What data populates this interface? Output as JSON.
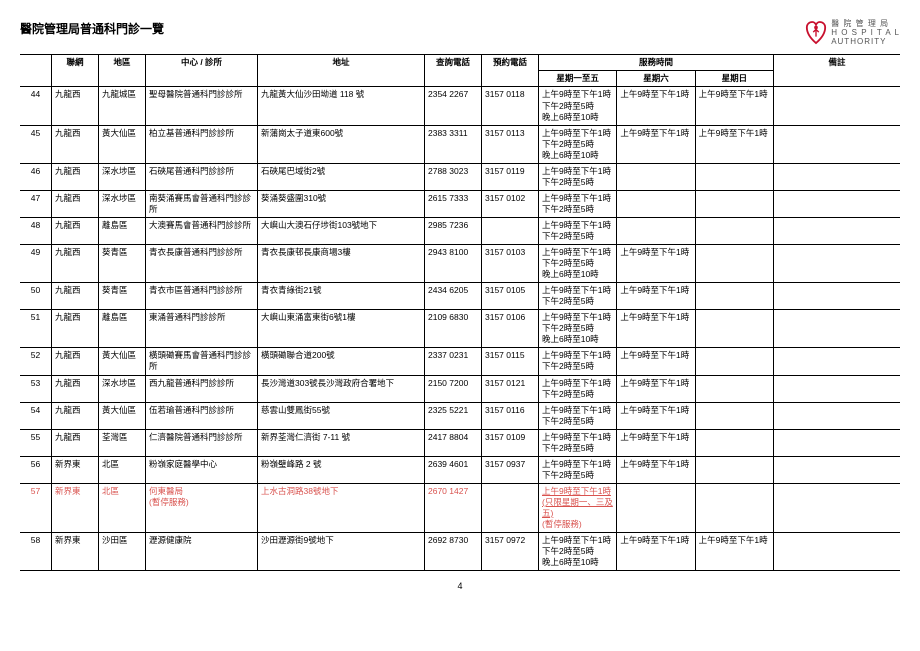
{
  "title": "醫院管理局普通科門診一覽",
  "logo": {
    "line1": "醫 院 管 理 局",
    "line2": "H O S P I T A L",
    "line3": "AUTHORITY"
  },
  "headers": {
    "cluster": "聯網",
    "district": "地區",
    "center": "中心 / 診所",
    "addr": "地址",
    "enq": "查詢電話",
    "book": "預約電話",
    "service": "服務時間",
    "weekday": "星期一至五",
    "sat": "星期六",
    "sun": "星期日",
    "remark": "備註"
  },
  "rows": [
    {
      "no": "44",
      "cluster": "九龍西",
      "district": "九龍城區",
      "center": "聖母醫院普通科門診診所",
      "addr": "九龍黃大仙沙田坳道 118 號",
      "enq": "2354 2267",
      "book": "3157 0118",
      "wk": "上午9時至下午1時\n下午2時至5時\n晚上6時至10時",
      "sat": "上午9時至下午1時",
      "sun": "上午9時至下午1時"
    },
    {
      "no": "45",
      "cluster": "九龍西",
      "district": "黃大仙區",
      "center": "柏立基普通科門診診所",
      "addr": "新蒲崗太子道東600號",
      "enq": "2383 3311",
      "book": "3157 0113",
      "wk": "上午9時至下午1時\n下午2時至5時\n晚上6時至10時",
      "sat": "上午9時至下午1時",
      "sun": "上午9時至下午1時"
    },
    {
      "no": "46",
      "cluster": "九龍西",
      "district": "深水埗區",
      "center": "石硤尾普通科門診診所",
      "addr": "石硤尾巴域街2號",
      "enq": "2788 3023",
      "book": "3157 0119",
      "wk": "上午9時至下午1時\n下午2時至5時",
      "sat": "",
      "sun": ""
    },
    {
      "no": "47",
      "cluster": "九龍西",
      "district": "深水埗區",
      "center": "南葵涌賽馬會普通科門診診所",
      "addr": "葵涌葵盛圍310號",
      "enq": "2615 7333",
      "book": "3157 0102",
      "wk": "上午9時至下午1時\n下午2時至5時",
      "sat": "",
      "sun": ""
    },
    {
      "no": "48",
      "cluster": "九龍西",
      "district": "離島區",
      "center": "大澳賽馬會普通科門診診所",
      "addr": "大嶼山大澳石仔埗街103號地下",
      "enq": "2985 7236",
      "book": "",
      "wk": "上午9時至下午1時\n下午2時至5時",
      "sat": "",
      "sun": ""
    },
    {
      "no": "49",
      "cluster": "九龍西",
      "district": "葵青區",
      "center": "青衣長康普通科門診診所",
      "addr": "青衣長康邨長康商場3樓",
      "enq": "2943 8100",
      "book": "3157 0103",
      "wk": "上午9時至下午1時\n下午2時至5時\n晚上6時至10時",
      "sat": "上午9時至下午1時",
      "sun": ""
    },
    {
      "no": "50",
      "cluster": "九龍西",
      "district": "葵青區",
      "center": "青衣市區普通科門診診所",
      "addr": "青衣青綠街21號",
      "enq": "2434 6205",
      "book": "3157 0105",
      "wk": "上午9時至下午1時\n下午2時至5時",
      "sat": "上午9時至下午1時",
      "sun": ""
    },
    {
      "no": "51",
      "cluster": "九龍西",
      "district": "離島區",
      "center": "東涌普通科門診診所",
      "addr": "大嶼山東涌富東街6號1樓",
      "enq": "2109 6830",
      "book": "3157 0106",
      "wk": "上午9時至下午1時\n下午2時至5時\n晚上6時至10時",
      "sat": "上午9時至下午1時",
      "sun": ""
    },
    {
      "no": "52",
      "cluster": "九龍西",
      "district": "黃大仙區",
      "center": "橫頭磡賽馬會普通科門診診所",
      "addr": "橫頭磡聯合道200號",
      "enq": "2337 0231",
      "book": "3157 0115",
      "wk": "上午9時至下午1時\n下午2時至5時",
      "sat": "上午9時至下午1時",
      "sun": ""
    },
    {
      "no": "53",
      "cluster": "九龍西",
      "district": "深水埗區",
      "center": "西九龍普通科門診診所",
      "addr": "長沙灣道303號長沙灣政府合署地下",
      "enq": "2150 7200",
      "book": "3157 0121",
      "wk": "上午9時至下午1時\n下午2時至5時",
      "sat": "上午9時至下午1時",
      "sun": ""
    },
    {
      "no": "54",
      "cluster": "九龍西",
      "district": "黃大仙區",
      "center": "伍若瑜普通科門診診所",
      "addr": "慈雲山雙鳳街55號",
      "enq": "2325 5221",
      "book": "3157 0116",
      "wk": "上午9時至下午1時\n下午2時至5時",
      "sat": "上午9時至下午1時",
      "sun": ""
    },
    {
      "no": "55",
      "cluster": "九龍西",
      "district": "荃灣區",
      "center": "仁濟醫院普通科門診診所",
      "addr": "新界荃灣仁濟街 7-11 號",
      "enq": "2417 8804",
      "book": "3157 0109",
      "wk": "上午9時至下午1時\n下午2時至5時",
      "sat": "上午9時至下午1時",
      "sun": ""
    },
    {
      "no": "56",
      "cluster": "新界東",
      "district": "北區",
      "center": "粉嶺家庭醫學中心",
      "addr": "粉嶺璧峰路 2 號",
      "enq": "2639 4601",
      "book": "3157 0937",
      "wk": "上午9時至下午1時\n下午2時至5時",
      "sat": "上午9時至下午1時",
      "sun": ""
    },
    {
      "no": "57",
      "cluster": "新界東",
      "district": "北區",
      "center": "何東醫局\n(暫停服務)",
      "addr": "上水古洞路38號地下",
      "enq": "2670 1427",
      "book": "",
      "wk": "上午9時至下午1時 (只限星期一、三及五)\n(暫停服務)",
      "sat": "",
      "sun": "",
      "red": true,
      "underlineWk": true
    },
    {
      "no": "58",
      "cluster": "新界東",
      "district": "沙田區",
      "center": "瀝源健康院",
      "addr": "沙田瀝源街9號地下",
      "enq": "2692 8730",
      "book": "3157 0972",
      "wk": "上午9時至下午1時\n下午2時至5時\n晚上6時至10時",
      "sat": "上午9時至下午1時",
      "sun": "上午9時至下午1時"
    }
  ],
  "pageNo": "4"
}
